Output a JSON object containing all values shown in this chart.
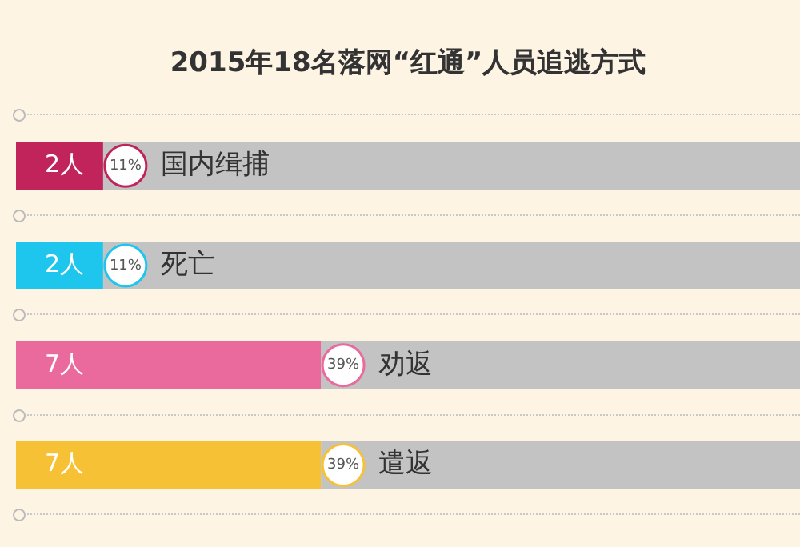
{
  "chart_data": {
    "type": "bar",
    "title": "2015年18名落网“红通”人员追逃方式",
    "orientation": "horizontal",
    "stacked": true,
    "categories": [
      "国内缉捕",
      "死亡",
      "劝返",
      "遣返"
    ],
    "xlim": [
      0,
      18
    ],
    "tick_labels": false,
    "grid": false,
    "legend": false,
    "series": [
      {
        "colors": [
          "#c0245a",
          "#1ec6ee",
          "#ea6a9e",
          "#f7c136"
        ],
        "values": [
          2,
          2,
          7,
          7
        ],
        "value_labels": [
          "2人",
          "2人",
          "7人",
          "7人"
        ]
      },
      {
        "color": "#c3c3c3",
        "values": [
          16,
          16,
          11,
          11
        ]
      }
    ],
    "annotations": [
      "11%",
      "11%",
      "39%",
      "39%"
    ]
  }
}
